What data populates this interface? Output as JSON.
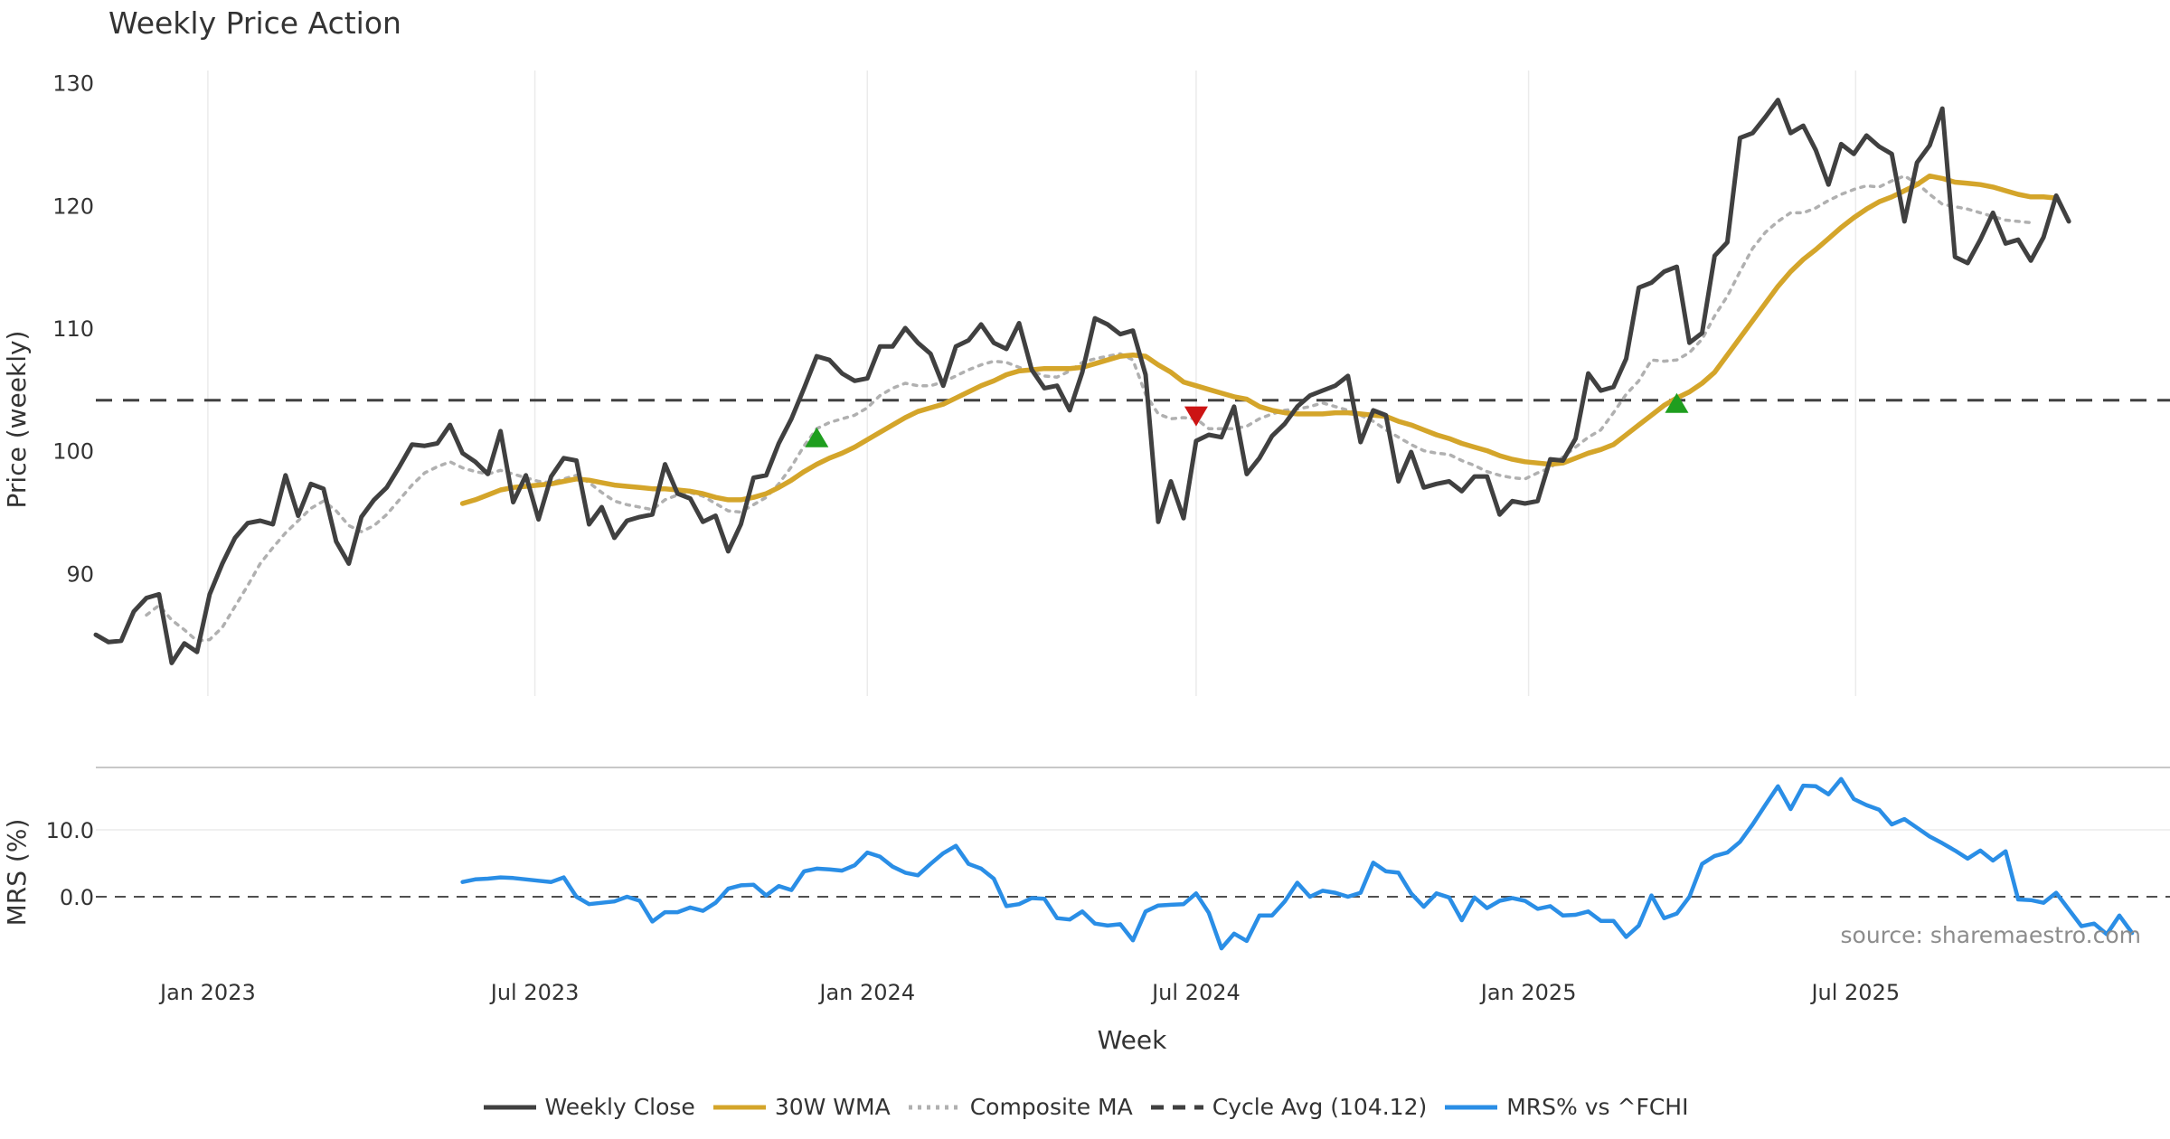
{
  "chart_data": [
    {
      "type": "line",
      "title": "Weekly Price Action",
      "ylabel": "Price (weekly)",
      "xlabel": "Week",
      "x_start": "2022-10-31",
      "x_interval": "weekly",
      "xlim": [
        "2022-10-31",
        "2025-12-22"
      ],
      "ylim": [
        80,
        131
      ],
      "yticks": [
        90,
        100,
        110,
        120,
        130
      ],
      "xticks": [
        {
          "date": "2023-01-01",
          "label": "Jan 2023"
        },
        {
          "date": "2023-07-01",
          "label": "Jul 2023"
        },
        {
          "date": "2024-01-01",
          "label": "Jan 2024"
        },
        {
          "date": "2024-07-01",
          "label": "Jul 2024"
        },
        {
          "date": "2025-01-01",
          "label": "Jan 2025"
        },
        {
          "date": "2025-07-01",
          "label": "Jul 2025"
        }
      ],
      "grid": "vertical",
      "series": [
        {
          "name": "Weekly Close",
          "color": "#404040",
          "style": "solid",
          "values": [
            85.0,
            84.4,
            84.5,
            86.9,
            88.0,
            88.3,
            82.7,
            84.3,
            83.6,
            88.3,
            90.8,
            92.9,
            94.1,
            94.3,
            94.0,
            98.0,
            94.7,
            97.3,
            96.9,
            92.6,
            90.8,
            94.6,
            96.0,
            97.0,
            98.7,
            100.5,
            100.4,
            100.6,
            102.1,
            99.8,
            99.1,
            98.1,
            101.6,
            95.8,
            98.0,
            94.4,
            97.9,
            99.4,
            99.2,
            94.0,
            95.4,
            92.9,
            94.3,
            94.6,
            94.8,
            98.9,
            96.5,
            96.1,
            94.2,
            94.7,
            91.8,
            94.0,
            97.8,
            98.0,
            100.6,
            102.6,
            105.1,
            107.7,
            107.4,
            106.3,
            105.7,
            105.9,
            108.5,
            108.5,
            110.0,
            108.8,
            107.9,
            105.3,
            108.5,
            109.0,
            110.3,
            108.8,
            108.3,
            110.4,
            106.6,
            105.1,
            105.3,
            103.3,
            106.4,
            110.8,
            110.3,
            109.5,
            109.8,
            106.2,
            94.2,
            97.5,
            94.5,
            100.8,
            101.3,
            101.1,
            103.6,
            98.1,
            99.4,
            101.2,
            102.2,
            103.6,
            104.5,
            104.9,
            105.3,
            106.1,
            100.7,
            103.3,
            102.9,
            97.5,
            99.9,
            97.0,
            97.3,
            97.5,
            96.7,
            97.9,
            97.9,
            94.8,
            95.9,
            95.7,
            95.9,
            99.3,
            99.2,
            101.0,
            106.3,
            104.9,
            105.2,
            107.5,
            113.3,
            113.7,
            114.6,
            115.0,
            108.8,
            109.6,
            115.9,
            117.0,
            125.5,
            125.9,
            127.2,
            128.6,
            125.9,
            126.5,
            124.5,
            121.7,
            125.0,
            124.2,
            125.7,
            124.8,
            124.2,
            118.7,
            123.5,
            124.9,
            127.9,
            115.8,
            115.3,
            117.2,
            119.4,
            116.9,
            117.2,
            115.5,
            117.4,
            120.8,
            118.7
          ]
        },
        {
          "name": "30W WMA",
          "color": "#d4a52a",
          "style": "solid",
          "values": [
            null,
            null,
            null,
            null,
            null,
            null,
            null,
            null,
            null,
            null,
            null,
            null,
            null,
            null,
            null,
            null,
            null,
            null,
            null,
            null,
            null,
            null,
            null,
            null,
            null,
            null,
            null,
            null,
            null,
            95.7,
            96.0,
            96.4,
            96.8,
            97.0,
            97.1,
            97.2,
            97.3,
            97.5,
            97.7,
            97.6,
            97.4,
            97.2,
            97.1,
            97.0,
            96.9,
            96.9,
            96.8,
            96.7,
            96.5,
            96.2,
            96.0,
            96.0,
            96.2,
            96.5,
            97.0,
            97.6,
            98.3,
            98.9,
            99.4,
            99.8,
            100.3,
            100.9,
            101.5,
            102.1,
            102.7,
            103.2,
            103.5,
            103.8,
            104.3,
            104.8,
            105.3,
            105.7,
            106.2,
            106.5,
            106.6,
            106.7,
            106.7,
            106.7,
            106.8,
            107.1,
            107.4,
            107.7,
            107.8,
            107.7,
            107.0,
            106.4,
            105.6,
            105.3,
            105.0,
            104.7,
            104.4,
            104.2,
            103.6,
            103.3,
            103.1,
            103.0,
            103.0,
            103.0,
            103.1,
            103.1,
            103.0,
            102.9,
            102.8,
            102.4,
            102.1,
            101.7,
            101.3,
            101.0,
            100.6,
            100.3,
            100.0,
            99.6,
            99.3,
            99.1,
            99.0,
            98.9,
            99.0,
            99.4,
            99.8,
            100.1,
            100.5,
            101.3,
            102.1,
            102.9,
            103.7,
            104.3,
            104.8,
            105.5,
            106.4,
            107.8,
            109.2,
            110.6,
            112.0,
            113.4,
            114.6,
            115.6,
            116.4,
            117.3,
            118.2,
            119.0,
            119.7,
            120.3,
            120.7,
            121.2,
            121.7,
            122.4,
            122.2,
            121.9,
            121.8,
            121.7,
            121.5,
            121.2,
            120.9,
            120.7,
            120.7,
            120.6
          ]
        },
        {
          "name": "Composite MA",
          "color": "#b0b0b0",
          "style": "dotted",
          "values": [
            null,
            null,
            null,
            null,
            86.6,
            87.4,
            86.2,
            85.4,
            84.5,
            84.6,
            85.6,
            87.3,
            89.0,
            90.8,
            92.1,
            93.3,
            94.3,
            95.3,
            95.9,
            95.1,
            93.9,
            93.4,
            93.9,
            94.8,
            96.0,
            97.2,
            98.2,
            98.7,
            99.1,
            98.6,
            98.3,
            98.1,
            98.4,
            98.1,
            97.8,
            97.5,
            97.4,
            97.7,
            98.0,
            97.4,
            96.6,
            95.9,
            95.6,
            95.4,
            95.2,
            96.0,
            96.4,
            96.6,
            96.3,
            95.7,
            95.1,
            95.0,
            95.6,
            96.2,
            97.3,
            98.7,
            100.4,
            101.8,
            102.3,
            102.6,
            102.9,
            103.5,
            104.5,
            105.1,
            105.5,
            105.3,
            105.3,
            105.6,
            106.1,
            106.6,
            107.0,
            107.3,
            107.2,
            106.8,
            106.5,
            106.1,
            106.0,
            106.5,
            107.2,
            107.5,
            107.7,
            107.9,
            107.4,
            104.6,
            103.0,
            102.6,
            102.7,
            102.6,
            101.8,
            101.8,
            101.8,
            102.0,
            102.6,
            103.0,
            103.3,
            103.4,
            103.6,
            103.9,
            103.6,
            103.3,
            102.9,
            102.4,
            101.7,
            101.1,
            100.5,
            100.0,
            99.8,
            99.7,
            99.2,
            98.8,
            98.3,
            98.0,
            97.8,
            97.7,
            98.2,
            98.6,
            99.5,
            100.3,
            101.1,
            101.7,
            103.1,
            104.6,
            105.7,
            107.4,
            107.3,
            107.4,
            108.0,
            109.1,
            111.0,
            112.6,
            114.6,
            116.5,
            117.8,
            118.7,
            119.4,
            119.4,
            119.8,
            120.4,
            120.9,
            121.3,
            121.6,
            121.5,
            122.0,
            122.4,
            121.8,
            120.9,
            120.1,
            119.9,
            119.7,
            119.4,
            119.1,
            118.8,
            118.7,
            118.6
          ]
        },
        {
          "name": "Cycle Avg (104.12)",
          "color": "#404040",
          "style": "dashed",
          "constant": 104.12
        }
      ],
      "signals": [
        {
          "type": "buy",
          "week_index": 57,
          "y": 101.1,
          "color": "#1f9e1f"
        },
        {
          "type": "sell",
          "week_index": 87,
          "y": 102.8,
          "color": "#cc1414"
        },
        {
          "type": "buy",
          "week_index": 125,
          "y": 103.9,
          "color": "#1f9e1f"
        }
      ]
    },
    {
      "type": "line",
      "ylabel": "MRS (%)",
      "xlabel": "Week",
      "x_start": "2022-10-31",
      "x_interval": "weekly",
      "ylim": [
        -8.5,
        18.5
      ],
      "yticks": [
        0.0,
        10.0
      ],
      "ytick_labels": [
        "0.0",
        "10.0"
      ],
      "grid": "horizontal",
      "zero_line": "dashed",
      "series": [
        {
          "name": "MRS% vs ^FCHI",
          "color": "#2a8ee6",
          "style": "solid",
          "values": [
            null,
            null,
            null,
            null,
            null,
            null,
            null,
            null,
            null,
            null,
            null,
            null,
            null,
            null,
            null,
            null,
            null,
            null,
            null,
            null,
            null,
            null,
            null,
            null,
            null,
            null,
            null,
            null,
            null,
            2.2,
            2.6,
            2.7,
            2.9,
            2.8,
            2.6,
            2.4,
            2.2,
            2.9,
            0.0,
            -1.1,
            -0.9,
            -0.7,
            0.0,
            -0.6,
            -3.7,
            -2.3,
            -2.3,
            -1.6,
            -2.1,
            -0.9,
            1.2,
            1.7,
            1.8,
            0.2,
            1.6,
            1.0,
            3.8,
            4.2,
            4.1,
            3.9,
            4.7,
            6.6,
            6.0,
            4.5,
            3.6,
            3.2,
            4.9,
            6.5,
            7.6,
            4.9,
            4.2,
            2.7,
            -1.4,
            -1.1,
            -0.2,
            -0.3,
            -3.2,
            -3.4,
            -2.2,
            -4.0,
            -4.3,
            -4.1,
            -6.5,
            -2.2,
            -1.3,
            -1.2,
            -1.1,
            0.5,
            -2.4,
            -7.7,
            -5.5,
            -6.6,
            -2.8,
            -2.8,
            -0.7,
            2.1,
            0.0,
            0.9,
            0.6,
            0.0,
            0.6,
            5.1,
            3.8,
            3.6,
            0.5,
            -1.5,
            0.5,
            -0.1,
            -3.5,
            -0.1,
            -1.7,
            -0.6,
            -0.2,
            -0.6,
            -1.8,
            -1.4,
            -2.8,
            -2.7,
            -2.2,
            -3.6,
            -3.6,
            -6.0,
            -4.3,
            0.2,
            -3.2,
            -2.5,
            0.0,
            4.9,
            6.1,
            6.6,
            8.2,
            10.8,
            13.7,
            16.5,
            13.1,
            16.6,
            16.5,
            15.3,
            17.6,
            14.6,
            13.7,
            13.0,
            10.8,
            11.6,
            10.3,
            9.0,
            8.0,
            6.9,
            5.7,
            6.9,
            5.4,
            6.8,
            -0.4,
            -0.5,
            -0.9,
            0.6,
            -1.9,
            -4.4,
            -4.0,
            -5.6,
            -2.8,
            -5.4
          ]
        }
      ]
    }
  ],
  "title": "Weekly Price Action",
  "xlabel": "Week",
  "source": "source: sharemaestro.com",
  "legend": [
    {
      "label": "Weekly Close",
      "color": "#404040",
      "style": "solid"
    },
    {
      "label": "30W WMA",
      "color": "#d4a52a",
      "style": "solid"
    },
    {
      "label": "Composite MA",
      "color": "#b0b0b0",
      "style": "dotted"
    },
    {
      "label": "Cycle Avg (104.12)",
      "color": "#404040",
      "style": "dashed"
    },
    {
      "label": "MRS% vs ^FCHI",
      "color": "#2a8ee6",
      "style": "solid"
    }
  ],
  "legend_position": "bottom-center"
}
